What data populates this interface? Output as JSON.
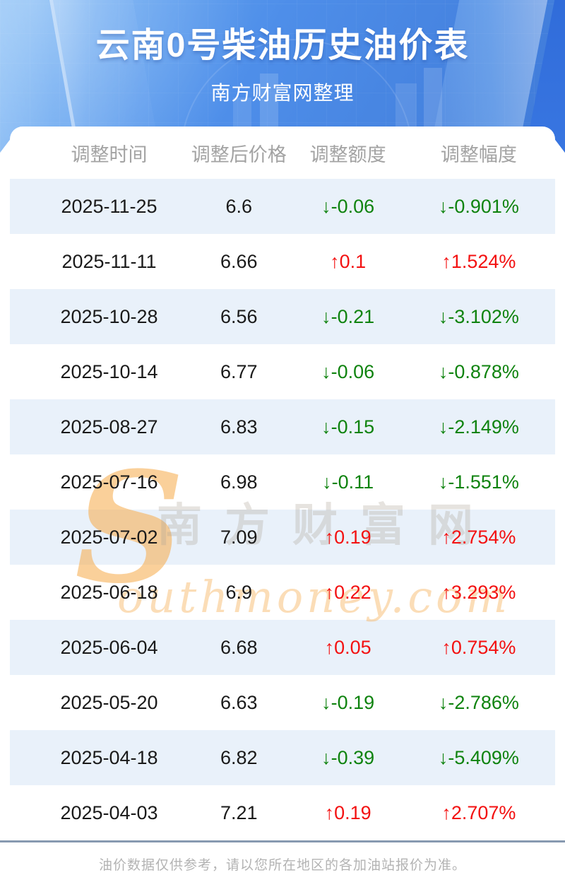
{
  "banner": {
    "title": "云南0号柴油历史油价表",
    "subtitle": "南方财富网整理"
  },
  "chart_data": {
    "type": "table",
    "title": "云南0号柴油历史油价表",
    "columns": [
      "调整时间",
      "调整后价格",
      "调整额度",
      "调整幅度"
    ],
    "rows": [
      {
        "date": "2025-11-25",
        "price": "6.6",
        "change": "↓-0.06",
        "rate": "↓-0.901%",
        "trend": "down"
      },
      {
        "date": "2025-11-11",
        "price": "6.66",
        "change": "↑0.1",
        "rate": "↑1.524%",
        "trend": "up"
      },
      {
        "date": "2025-10-28",
        "price": "6.56",
        "change": "↓-0.21",
        "rate": "↓-3.102%",
        "trend": "down"
      },
      {
        "date": "2025-10-14",
        "price": "6.77",
        "change": "↓-0.06",
        "rate": "↓-0.878%",
        "trend": "down"
      },
      {
        "date": "2025-08-27",
        "price": "6.83",
        "change": "↓-0.15",
        "rate": "↓-2.149%",
        "trend": "down"
      },
      {
        "date": "2025-07-16",
        "price": "6.98",
        "change": "↓-0.11",
        "rate": "↓-1.551%",
        "trend": "down"
      },
      {
        "date": "2025-07-02",
        "price": "7.09",
        "change": "↑0.19",
        "rate": "↑2.754%",
        "trend": "up"
      },
      {
        "date": "2025-06-18",
        "price": "6.9",
        "change": "↑0.22",
        "rate": "↑3.293%",
        "trend": "up"
      },
      {
        "date": "2025-06-04",
        "price": "6.68",
        "change": "↑0.05",
        "rate": "↑0.754%",
        "trend": "up"
      },
      {
        "date": "2025-05-20",
        "price": "6.63",
        "change": "↓-0.19",
        "rate": "↓-2.786%",
        "trend": "down"
      },
      {
        "date": "2025-04-18",
        "price": "6.82",
        "change": "↓-0.39",
        "rate": "↓-5.409%",
        "trend": "down"
      },
      {
        "date": "2025-04-03",
        "price": "7.21",
        "change": "↑0.19",
        "rate": "↑2.707%",
        "trend": "up"
      }
    ]
  },
  "watermark": {
    "initial": "S",
    "cn": "南方财富网",
    "en": "outhmoney.com"
  },
  "footer": {
    "note": "油价数据仅供参考，请以您所在地区的各加油站报价为准。"
  },
  "colors": {
    "up_red": "#f31111",
    "down_green": "#0f830f",
    "row_stripe": "#e9f1fa",
    "divider": "#8799b0",
    "banner_blue_light": "#6fb1f4",
    "banner_blue_deep": "#3f7ad8"
  }
}
